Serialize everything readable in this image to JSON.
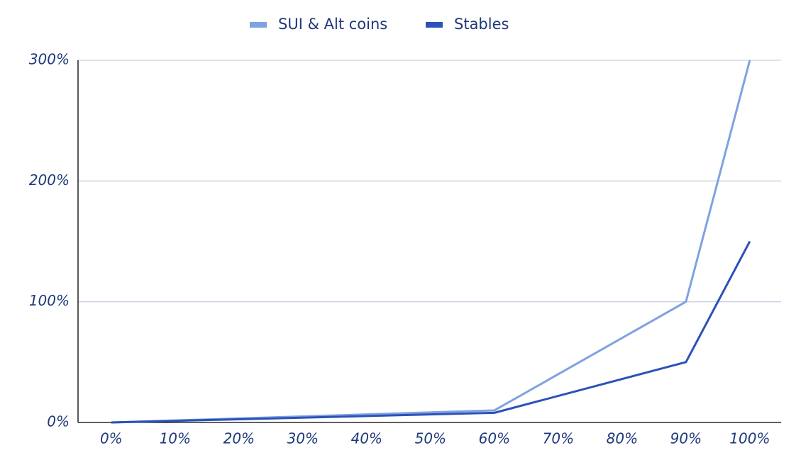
{
  "chart_data": {
    "type": "line",
    "x": [
      0,
      60,
      90,
      100
    ],
    "series": [
      {
        "name": "SUI & Alt coins",
        "color": "#7fa2e0",
        "values": [
          0,
          10,
          100,
          300
        ]
      },
      {
        "name": "Stables",
        "color": "#2b52b8",
        "values": [
          0,
          8,
          50,
          150
        ]
      }
    ],
    "xlim": [
      -5.2,
      104.9
    ],
    "xticks": [
      {
        "value": 0,
        "label": "0%"
      },
      {
        "value": 10,
        "label": "10%"
      },
      {
        "value": 20,
        "label": "20%"
      },
      {
        "value": 30,
        "label": "30%"
      },
      {
        "value": 40,
        "label": "40%"
      },
      {
        "value": 50,
        "label": "50%"
      },
      {
        "value": 60,
        "label": "60%"
      },
      {
        "value": 70,
        "label": "70%"
      },
      {
        "value": 80,
        "label": "80%"
      },
      {
        "value": 90,
        "label": "90%"
      },
      {
        "value": 100,
        "label": "100%"
      }
    ],
    "ylim": [
      0,
      300
    ],
    "yticks": [
      {
        "value": 0,
        "label": "0%"
      },
      {
        "value": 100,
        "label": "100%"
      },
      {
        "value": 200,
        "label": "200%"
      },
      {
        "value": 300,
        "label": "300%"
      }
    ],
    "grid": true,
    "legend": "top"
  }
}
